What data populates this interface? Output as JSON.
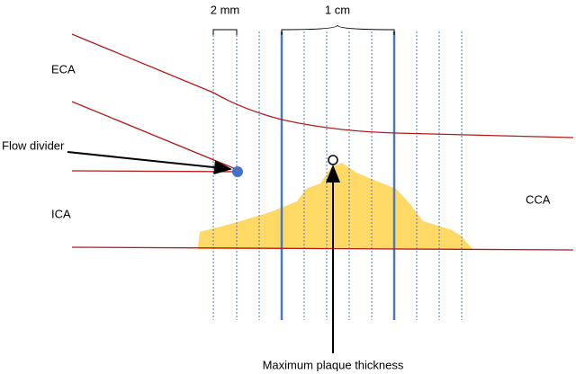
{
  "scale": {
    "small": "2 mm",
    "large": "1 cm"
  },
  "labels": {
    "eca": "ECA",
    "flow_divider": "Flow divider",
    "ica": "ICA",
    "cca": "CCA",
    "max_plaque": "Maximum plaque thickness"
  }
}
